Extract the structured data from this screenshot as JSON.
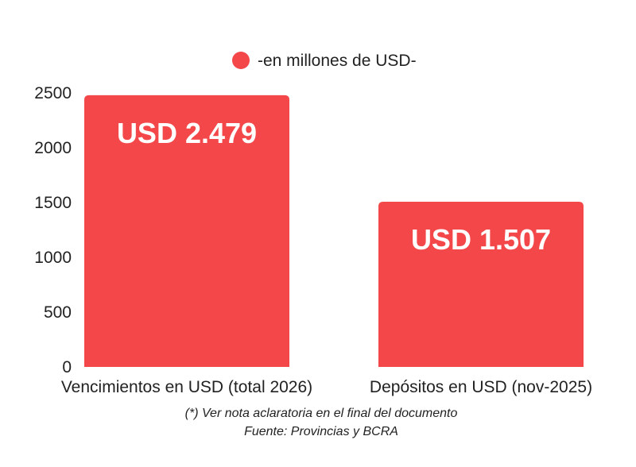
{
  "chart_data": {
    "type": "bar",
    "categories": [
      "Vencimientos en USD (total 2026)",
      "Depósitos en USD (nov-2025)"
    ],
    "series": [
      {
        "name": "-en millones de USD-",
        "values": [
          2479,
          1507
        ]
      }
    ],
    "data_labels": [
      "USD 2.479",
      "USD 1.507"
    ],
    "ylim": [
      0,
      2500
    ],
    "yticks": [
      0,
      500,
      1000,
      1500,
      2000,
      2500
    ],
    "grid": false,
    "legend_position": "top-center",
    "bar_color": "#f4474a"
  },
  "footnotes": {
    "note": "(*) Ver nota aclaratoria en el final del documento",
    "source": "Fuente: Provincias y BCRA"
  }
}
